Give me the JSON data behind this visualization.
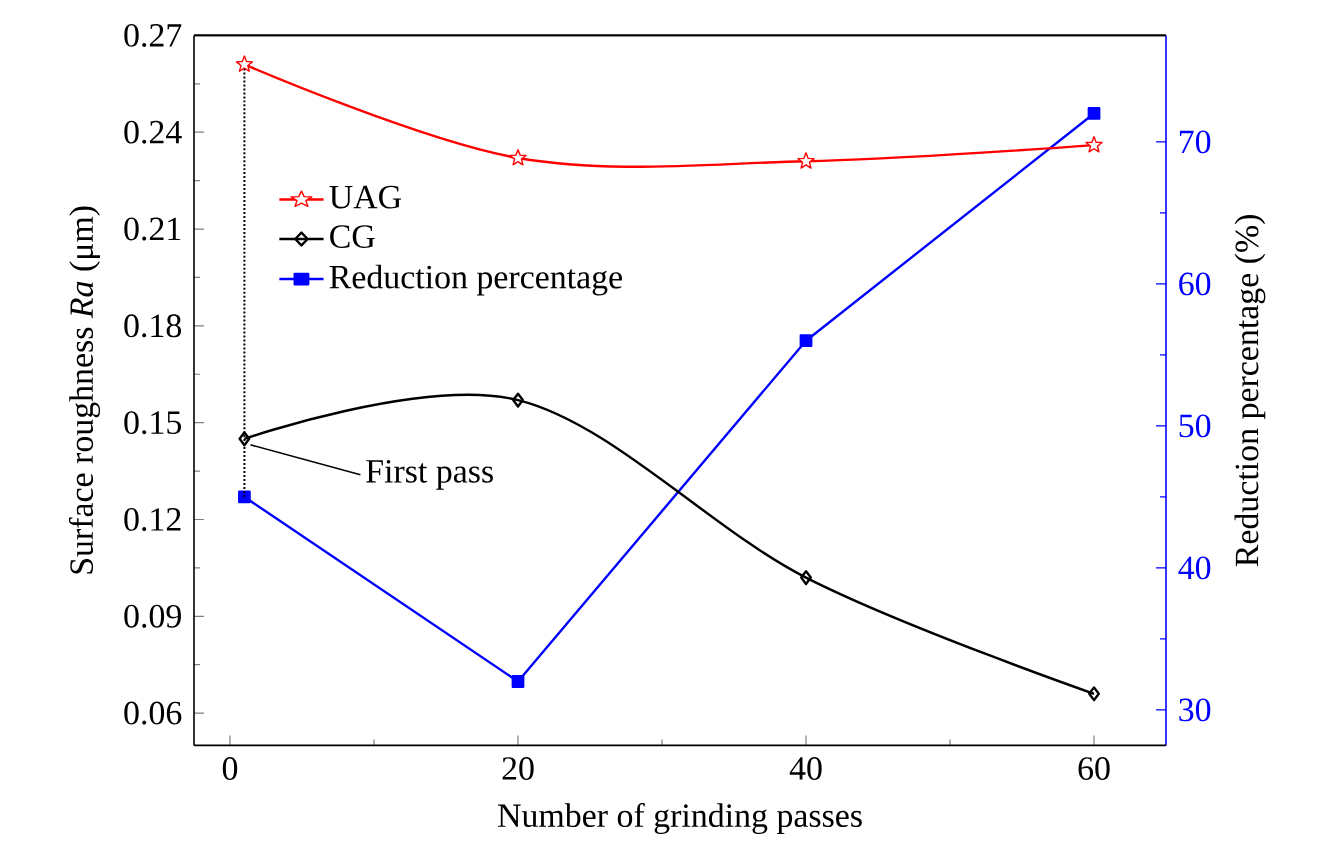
{
  "chart_data": {
    "type": "line",
    "xlabel": "Number of grinding passes",
    "ylabel": "Surface roughness *Ra* (μm)",
    "y2label": "Reduction percentage (%)",
    "x": [
      1,
      20,
      40,
      60
    ],
    "series": [
      {
        "name": "UAG",
        "color": "#ff0000",
        "marker": "star",
        "values": [
          0.261,
          0.232,
          0.231,
          0.236
        ]
      },
      {
        "name": "CG",
        "color": "#000000",
        "marker": "diamond",
        "values": [
          0.145,
          0.157,
          0.102,
          0.066
        ]
      },
      {
        "name": "Reduction percentage",
        "color": "#0000ff",
        "marker": "square",
        "axis": "y2",
        "values": [
          45,
          32,
          56,
          72
        ]
      }
    ],
    "xlim": [
      -2.5,
      65
    ],
    "xticks": [
      0,
      20,
      40,
      60
    ],
    "ylim": [
      0.05,
      0.27
    ],
    "yticks": [
      {
        "value": 0.06,
        "label": "0.06"
      },
      {
        "value": 0.09,
        "label": "0.09"
      },
      {
        "value": 0.12,
        "label": "0.12"
      },
      {
        "value": 0.15,
        "label": "0.15"
      },
      {
        "value": 0.18,
        "label": "0.18"
      },
      {
        "value": 0.21,
        "label": "0.21"
      },
      {
        "value": 0.24,
        "label": "0.24"
      },
      {
        "value": 0.27,
        "label": "0.27"
      }
    ],
    "y2lim": [
      27.5,
      77.5
    ],
    "y2ticks": [
      30,
      40,
      50,
      60,
      70
    ],
    "ref_lines": [
      {
        "axis": "x",
        "value": 1,
        "line_style": "dotted",
        "color": "#000000"
      }
    ],
    "annotations": [
      {
        "text": "First pass",
        "x": 1,
        "y": 0.145
      }
    ],
    "legend": "top left",
    "grid": false
  }
}
